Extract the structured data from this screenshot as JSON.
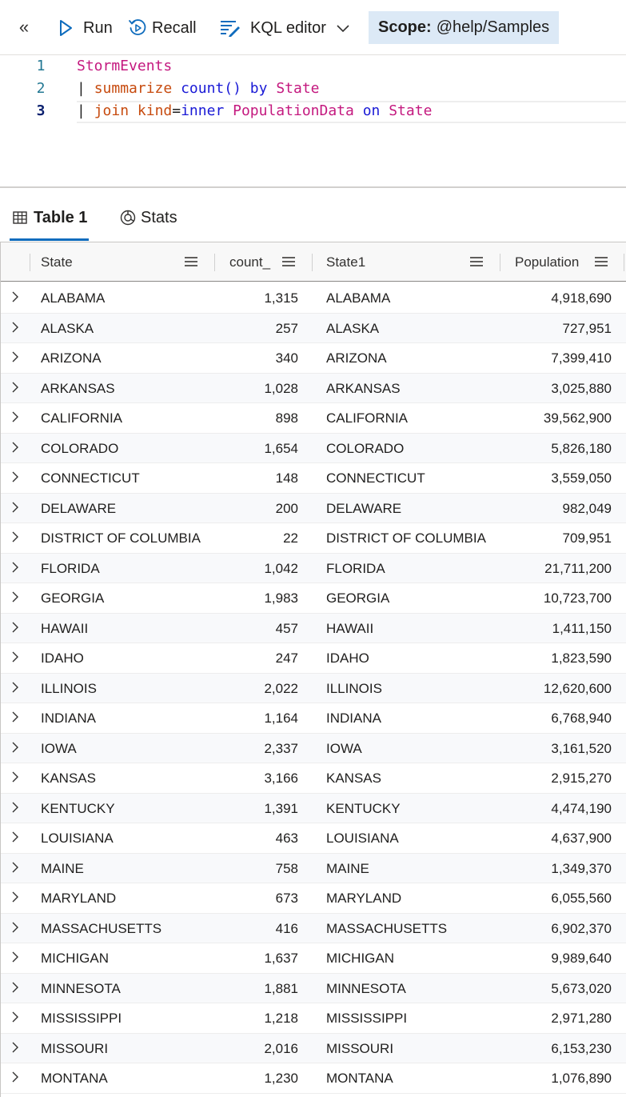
{
  "toolbar": {
    "run_label": "Run",
    "recall_label": "Recall",
    "editor_mode_label": "KQL editor",
    "scope_prefix": "Scope:",
    "scope_value": "@help/Samples"
  },
  "editor": {
    "lines": [
      {
        "number": "1",
        "tokens": [
          "StormEvents"
        ]
      },
      {
        "number": "2",
        "tokens": [
          "|",
          "summarize",
          "count()",
          "by",
          "State"
        ]
      },
      {
        "number": "3",
        "tokens": [
          "|",
          "join",
          "kind",
          "=",
          "inner",
          "PopulationData",
          "on",
          "State"
        ]
      }
    ]
  },
  "results": {
    "tabs": [
      {
        "label": "Table 1",
        "icon": "table-icon",
        "active": true
      },
      {
        "label": "Stats",
        "icon": "stats-icon",
        "active": false
      }
    ],
    "columns": [
      "State",
      "count_",
      "State1",
      "Population"
    ],
    "rows": [
      [
        "ALABAMA",
        "1,315",
        "ALABAMA",
        "4,918,690"
      ],
      [
        "ALASKA",
        "257",
        "ALASKA",
        "727,951"
      ],
      [
        "ARIZONA",
        "340",
        "ARIZONA",
        "7,399,410"
      ],
      [
        "ARKANSAS",
        "1,028",
        "ARKANSAS",
        "3,025,880"
      ],
      [
        "CALIFORNIA",
        "898",
        "CALIFORNIA",
        "39,562,900"
      ],
      [
        "COLORADO",
        "1,654",
        "COLORADO",
        "5,826,180"
      ],
      [
        "CONNECTICUT",
        "148",
        "CONNECTICUT",
        "3,559,050"
      ],
      [
        "DELAWARE",
        "200",
        "DELAWARE",
        "982,049"
      ],
      [
        "DISTRICT OF COLUMBIA",
        "22",
        "DISTRICT OF COLUMBIA",
        "709,951"
      ],
      [
        "FLORIDA",
        "1,042",
        "FLORIDA",
        "21,711,200"
      ],
      [
        "GEORGIA",
        "1,983",
        "GEORGIA",
        "10,723,700"
      ],
      [
        "HAWAII",
        "457",
        "HAWAII",
        "1,411,150"
      ],
      [
        "IDAHO",
        "247",
        "IDAHO",
        "1,823,590"
      ],
      [
        "ILLINOIS",
        "2,022",
        "ILLINOIS",
        "12,620,600"
      ],
      [
        "INDIANA",
        "1,164",
        "INDIANA",
        "6,768,940"
      ],
      [
        "IOWA",
        "2,337",
        "IOWA",
        "3,161,520"
      ],
      [
        "KANSAS",
        "3,166",
        "KANSAS",
        "2,915,270"
      ],
      [
        "KENTUCKY",
        "1,391",
        "KENTUCKY",
        "4,474,190"
      ],
      [
        "LOUISIANA",
        "463",
        "LOUISIANA",
        "4,637,900"
      ],
      [
        "MAINE",
        "758",
        "MAINE",
        "1,349,370"
      ],
      [
        "MARYLAND",
        "673",
        "MARYLAND",
        "6,055,560"
      ],
      [
        "MASSACHUSETTS",
        "416",
        "MASSACHUSETTS",
        "6,902,370"
      ],
      [
        "MICHIGAN",
        "1,637",
        "MICHIGAN",
        "9,989,640"
      ],
      [
        "MINNESOTA",
        "1,881",
        "MINNESOTA",
        "5,673,020"
      ],
      [
        "MISSISSIPPI",
        "1,218",
        "MISSISSIPPI",
        "2,971,280"
      ],
      [
        "MISSOURI",
        "2,016",
        "MISSOURI",
        "6,153,230"
      ],
      [
        "MONTANA",
        "1,230",
        "MONTANA",
        "1,076,890"
      ]
    ]
  },
  "colors": {
    "accent": "#0f6cbd",
    "scope_bg": "#dce9f6",
    "kql_operator": "#c74b0f",
    "kql_function": "#1a1ad6",
    "kql_identifier": "#c4197f"
  }
}
